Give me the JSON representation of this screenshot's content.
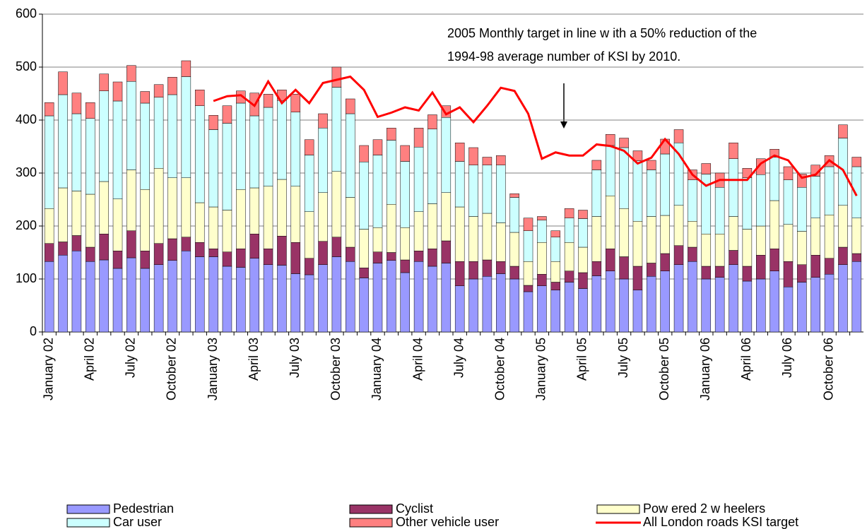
{
  "chart_data": {
    "type": "bar",
    "annotation": [
      "2005 Monthly target in line w ith a 50% reduction of the",
      "1994-98 average number of  KSI by 2010."
    ],
    "categories": [
      "January 02",
      null,
      null,
      "April 02",
      null,
      null,
      "July 02",
      null,
      null,
      "October 02",
      null,
      null,
      "January 03",
      null,
      null,
      "April 03",
      null,
      null,
      "July 03",
      null,
      null,
      "October 03",
      null,
      null,
      "January 04",
      null,
      null,
      "April 04",
      null,
      null,
      "July 04",
      null,
      null,
      "October 04",
      null,
      null,
      "January 05",
      null,
      null,
      "April 05",
      null,
      null,
      "July 05",
      null,
      null,
      "October 05",
      null,
      null,
      "January 06",
      null,
      null,
      "April 06",
      null,
      null,
      "July 06",
      null,
      null,
      "October 06",
      null,
      null
    ],
    "series": [
      {
        "name": "Pedestrian",
        "color": "#9999ff",
        "values": [
          133,
          145,
          153,
          133,
          136,
          120,
          140,
          120,
          127,
          135,
          153,
          142,
          142,
          124,
          122,
          139,
          127,
          126,
          110,
          108,
          127,
          142,
          133,
          102,
          130,
          135,
          112,
          133,
          124,
          130,
          87,
          100,
          105,
          110,
          100,
          76,
          87,
          79,
          94,
          82,
          106,
          115,
          100,
          79,
          105,
          115,
          127,
          133,
          100,
          103,
          127,
          96,
          100,
          115,
          85,
          94,
          103,
          109,
          127,
          133
        ]
      },
      {
        "name": "Cyclist",
        "color": "#993366",
        "values": [
          34,
          25,
          29,
          27,
          49,
          33,
          51,
          33,
          40,
          41,
          26,
          27,
          15,
          27,
          35,
          46,
          30,
          55,
          59,
          31,
          44,
          37,
          27,
          19,
          21,
          15,
          24,
          20,
          33,
          42,
          46,
          33,
          31,
          23,
          24,
          12,
          22,
          15,
          21,
          30,
          27,
          42,
          42,
          45,
          25,
          33,
          36,
          27,
          24,
          21,
          27,
          28,
          45,
          42,
          48,
          33,
          42,
          30,
          33,
          15
        ]
      },
      {
        "name": "Pow ered 2 w heelers",
        "color": "#ffffcc",
        "values": [
          66,
          102,
          84,
          100,
          99,
          98,
          115,
          116,
          142,
          115,
          112,
          75,
          79,
          79,
          112,
          87,
          118,
          107,
          106,
          88,
          92,
          124,
          94,
          73,
          46,
          91,
          61,
          74,
          85,
          91,
          103,
          85,
          88,
          73,
          64,
          45,
          60,
          39,
          54,
          48,
          85,
          100,
          91,
          85,
          88,
          72,
          76,
          49,
          61,
          61,
          64,
          70,
          55,
          91,
          70,
          63,
          70,
          82,
          79,
          67
        ]
      },
      {
        "name": "Car user",
        "color": "#ccffff",
        "values": [
          175,
          176,
          146,
          143,
          171,
          185,
          167,
          163,
          134,
          157,
          191,
          183,
          146,
          164,
          163,
          136,
          149,
          149,
          140,
          107,
          122,
          159,
          158,
          127,
          137,
          121,
          125,
          122,
          141,
          142,
          86,
          97,
          91,
          109,
          66,
          58,
          42,
          46,
          46,
          54,
          88,
          95,
          115,
          114,
          88,
          116,
          118,
          78,
          113,
          88,
          109,
          97,
          97,
          82,
          84,
          83,
          79,
          91,
          127,
          97
        ]
      },
      {
        "name": "Other vehicle user",
        "color": "#ff8080",
        "values": [
          25,
          43,
          39,
          30,
          32,
          36,
          30,
          22,
          24,
          33,
          30,
          30,
          27,
          33,
          23,
          43,
          25,
          20,
          34,
          29,
          27,
          38,
          28,
          31,
          29,
          23,
          30,
          36,
          27,
          22,
          35,
          33,
          15,
          18,
          7,
          24,
          7,
          12,
          18,
          16,
          18,
          21,
          18,
          19,
          18,
          28,
          25,
          19,
          20,
          27,
          30,
          18,
          30,
          15,
          25,
          25,
          21,
          21,
          25,
          18
        ]
      },
      {
        "name": "All London roads KSI target",
        "type": "line",
        "color": "#ff0000",
        "values": [
          null,
          null,
          null,
          null,
          null,
          null,
          null,
          null,
          null,
          null,
          null,
          null,
          436,
          445,
          447,
          427,
          473,
          432,
          457,
          432,
          470,
          476,
          482,
          457,
          406,
          414,
          424,
          418,
          452,
          411,
          424,
          396,
          427,
          461,
          455,
          412,
          327,
          339,
          333,
          333,
          354,
          351,
          342,
          318,
          329,
          364,
          336,
          297,
          276,
          287,
          287,
          287,
          318,
          333,
          324,
          291,
          297,
          324,
          306,
          257
        ]
      }
    ],
    "ylim": [
      0,
      600
    ],
    "yticks": [
      0,
      100,
      200,
      300,
      400,
      500,
      600
    ],
    "grid": true
  }
}
